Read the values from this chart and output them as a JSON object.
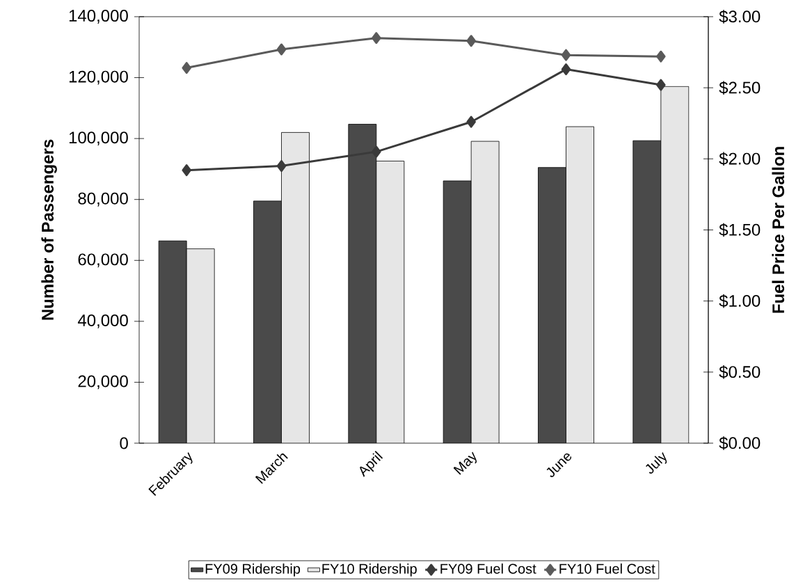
{
  "chart_data": {
    "type": "bar",
    "categories": [
      "February",
      "March",
      "April",
      "May",
      "June",
      "July"
    ],
    "ylabel": "Number of Passengers",
    "y2label": "Fuel Price Per Gallon",
    "ylim": [
      0,
      140000
    ],
    "yticks": [
      0,
      {
        "value": 20000,
        "label": "20,000"
      },
      {
        "value": 40000,
        "label": "40,000"
      },
      {
        "value": 60000,
        "label": "60,000"
      },
      {
        "value": 80000,
        "label": "80,000"
      },
      {
        "value": 100000,
        "label": "100,000"
      },
      {
        "value": 120000,
        "label": "120,000"
      },
      {
        "value": 140000,
        "label": "140,000"
      }
    ],
    "y2lim": [
      0,
      3
    ],
    "y2ticks": [
      {
        "value": 0,
        "label": "$0.00"
      },
      {
        "value": 0.5,
        "label": "$0.50"
      },
      {
        "value": 1,
        "label": "$1.00"
      },
      {
        "value": 1.5,
        "label": "$1.50"
      },
      {
        "value": 2,
        "label": "$2.00"
      },
      {
        "value": 2.5,
        "label": "$2.50"
      },
      {
        "value": 3,
        "label": "$3.00"
      }
    ],
    "legend": "bottom",
    "marker": "diamond",
    "series": [
      {
        "name": "FY09 Ridership",
        "color": "#4a4a4a",
        "values": [
          66400,
          79500,
          104700,
          86100,
          90500,
          99300
        ]
      },
      {
        "name": "FY10 Ridership",
        "color": "#e6e6e6",
        "values": [
          63800,
          102000,
          92600,
          99100,
          103900,
          117100
        ]
      },
      {
        "name": "FY09 Fuel Cost",
        "type": "line",
        "axis": "y2",
        "color": "#3a3a3a",
        "values": [
          1.92,
          1.95,
          2.05,
          2.26,
          2.63,
          2.52
        ]
      },
      {
        "name": "FY10 Fuel Cost",
        "type": "line",
        "axis": "y2",
        "color": "#5a5a5a",
        "values": [
          2.64,
          2.77,
          2.85,
          2.83,
          2.73,
          2.72
        ]
      }
    ]
  }
}
